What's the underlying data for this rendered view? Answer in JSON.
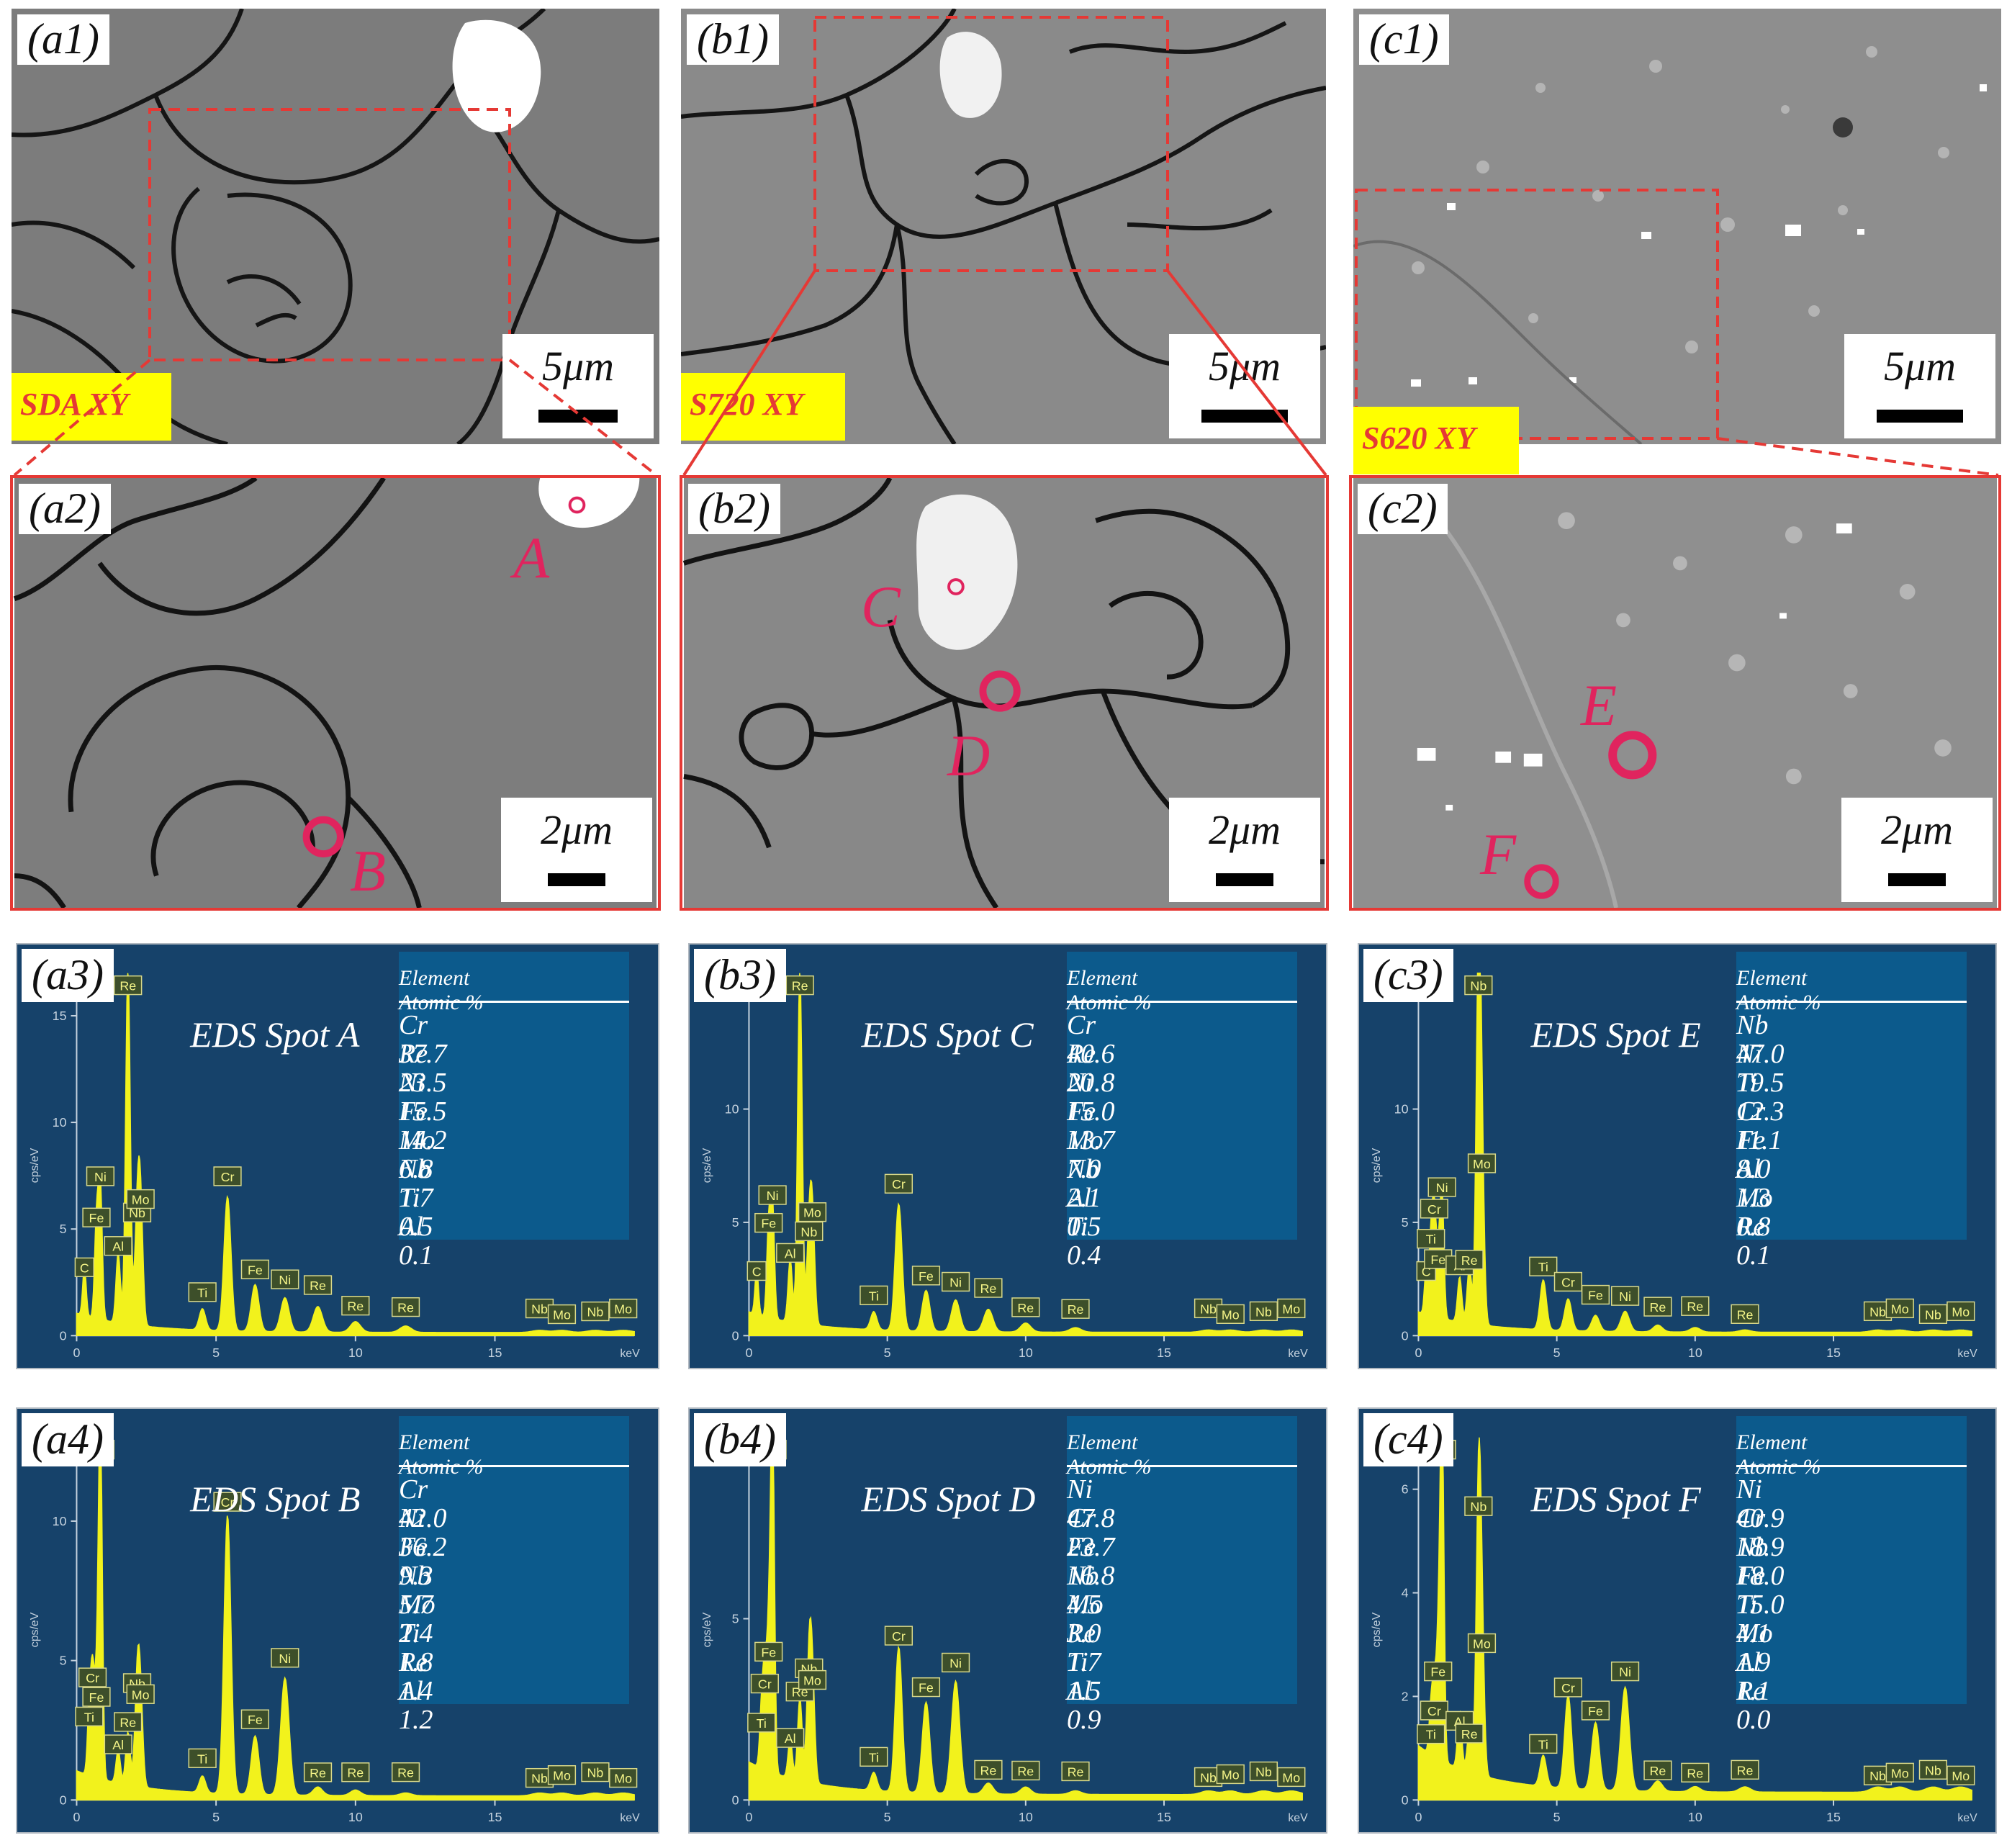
{
  "panels": {
    "a1": {
      "label": "(a1)",
      "scale": "5μm",
      "sample": "SDA XY"
    },
    "b1": {
      "label": "(b1)",
      "scale": "5μm",
      "sample": "S720 XY"
    },
    "c1": {
      "label": "(c1)",
      "scale": "5μm",
      "sample": "S620 XY"
    },
    "a2": {
      "label": "(a2)",
      "scale": "2μm",
      "spots": [
        "A",
        "B"
      ]
    },
    "b2": {
      "label": "(b2)",
      "scale": "2μm",
      "spots": [
        "C",
        "D"
      ]
    },
    "c2": {
      "label": "(c2)",
      "scale": "2μm",
      "spots": [
        "E",
        "F"
      ]
    }
  },
  "eds_common": {
    "table_headers": [
      "Element",
      "Atomic %"
    ],
    "y_axis_label": "cps/eV",
    "x_axis_label": "keV",
    "x_ticks": [
      "0",
      "5",
      "10",
      "15"
    ]
  },
  "eds": [
    {
      "label": "(a3)",
      "title": "EDS Spot A",
      "y_ticks": [
        "0",
        "5",
        "10",
        "15"
      ],
      "rows": [
        [
          "Cr",
          "37.7"
        ],
        [
          "Re",
          "23.5"
        ],
        [
          "Ni",
          "15.5"
        ],
        [
          "Fe",
          "14.2"
        ],
        [
          "Mo",
          "6.8"
        ],
        [
          "Nb",
          "1.7"
        ],
        [
          "Ti",
          "0.5"
        ],
        [
          "Al",
          "0.1"
        ]
      ]
    },
    {
      "label": "(b3)",
      "title": "EDS Spot C",
      "y_ticks": [
        "0",
        "5",
        "10"
      ],
      "rows": [
        [
          "Cr",
          "40.6"
        ],
        [
          "Re",
          "20.8"
        ],
        [
          "Ni",
          "15.0"
        ],
        [
          "Fe",
          "13.7"
        ],
        [
          "Mo",
          "7.0"
        ],
        [
          "Nb",
          "2.1"
        ],
        [
          "Al",
          "0.5"
        ],
        [
          "Ti",
          "0.4"
        ]
      ]
    },
    {
      "label": "(c3)",
      "title": "EDS Spot E",
      "y_ticks": [
        "0",
        "5",
        "10"
      ],
      "rows": [
        [
          "Nb",
          "47.0"
        ],
        [
          "Ni",
          "19.5"
        ],
        [
          "Ti",
          "12.3"
        ],
        [
          "Cr",
          "11.1"
        ],
        [
          "Fe",
          "8.0"
        ],
        [
          "Al",
          "1.3"
        ],
        [
          "Mo",
          "0.8"
        ],
        [
          "Re",
          "0.1"
        ]
      ]
    },
    {
      "label": "(a4)",
      "title": "EDS Spot B",
      "y_ticks": [
        "0",
        "5",
        "10"
      ],
      "rows": [
        [
          "Cr",
          "42.0"
        ],
        [
          "Ni",
          "36.2"
        ],
        [
          "Fe",
          "9.3"
        ],
        [
          "Nb",
          "5.7"
        ],
        [
          "Mo",
          "2.4"
        ],
        [
          "Ti",
          "1.8"
        ],
        [
          "Re",
          "1.4"
        ],
        [
          "Al",
          "1.2"
        ]
      ]
    },
    {
      "label": "(b4)",
      "title": "EDS Spot D",
      "y_ticks": [
        "0",
        "5"
      ],
      "rows": [
        [
          "Ni",
          "47.8"
        ],
        [
          "Cr",
          "23.7"
        ],
        [
          "Fe",
          "16.8"
        ],
        [
          "Nb",
          "4.5"
        ],
        [
          "Mo",
          "3.0"
        ],
        [
          "Re",
          "1.7"
        ],
        [
          "Ti",
          "1.5"
        ],
        [
          "Al",
          "0.9"
        ]
      ]
    },
    {
      "label": "(c4)",
      "title": "EDS Spot F",
      "y_ticks": [
        "0",
        "2",
        "4",
        "6"
      ],
      "rows": [
        [
          "Ni",
          "40.9"
        ],
        [
          "Cr",
          "18.9"
        ],
        [
          "Nb",
          "18.0"
        ],
        [
          "Fe",
          "15.0"
        ],
        [
          "Ti",
          "4.1"
        ],
        [
          "Mo",
          "1.9"
        ],
        [
          "Al",
          "1.1"
        ],
        [
          "Re",
          "0.0"
        ]
      ]
    }
  ],
  "chart_data": [
    {
      "type": "line",
      "title": "EDS Spot A",
      "xlabel": "keV",
      "ylabel": "cps/eV",
      "xlim": [
        0,
        20
      ],
      "ylim": [
        0,
        17
      ],
      "peaks": [
        {
          "label": "C",
          "x": 0.28,
          "y": 2.3
        },
        {
          "label": "Fe",
          "x": 0.71,
          "y": 4.5
        },
        {
          "label": "Ni",
          "x": 0.85,
          "y": 6.3
        },
        {
          "label": "Al",
          "x": 1.49,
          "y": 3.3
        },
        {
          "label": "Re",
          "x": 1.84,
          "y": 17.0
        },
        {
          "label": "Nb",
          "x": 2.17,
          "y": 4.6
        },
        {
          "label": "Mo",
          "x": 2.29,
          "y": 5.5
        },
        {
          "label": "Ti",
          "x": 4.51,
          "y": 1.0
        },
        {
          "label": "Cr",
          "x": 5.41,
          "y": 6.3
        },
        {
          "label": "Fe",
          "x": 6.4,
          "y": 2.2
        },
        {
          "label": "Ni",
          "x": 7.47,
          "y": 1.6
        },
        {
          "label": "Re",
          "x": 8.65,
          "y": 1.2
        },
        {
          "label": "Re",
          "x": 10.0,
          "y": 0.5
        },
        {
          "label": "Re",
          "x": 11.8,
          "y": 0.3
        },
        {
          "label": "Nb",
          "x": 16.6,
          "y": 0.1
        },
        {
          "label": "Mo",
          "x": 17.4,
          "y": 0.1
        },
        {
          "label": "Nb",
          "x": 18.6,
          "y": 0.1
        },
        {
          "label": "Mo",
          "x": 19.6,
          "y": 0.1
        }
      ]
    },
    {
      "type": "line",
      "title": "EDS Spot C",
      "xlabel": "keV",
      "ylabel": "cps/eV",
      "xlim": [
        0,
        20
      ],
      "ylim": [
        0,
        16
      ],
      "peaks": [
        {
          "label": "C",
          "x": 0.28,
          "y": 2.0
        },
        {
          "label": "Fe",
          "x": 0.71,
          "y": 4.0
        },
        {
          "label": "Ni",
          "x": 0.85,
          "y": 5.1
        },
        {
          "label": "Al",
          "x": 1.49,
          "y": 2.8
        },
        {
          "label": "Re",
          "x": 1.84,
          "y": 15.8
        },
        {
          "label": "Nb",
          "x": 2.17,
          "y": 3.5
        },
        {
          "label": "Mo",
          "x": 2.29,
          "y": 4.6
        },
        {
          "label": "Ti",
          "x": 4.51,
          "y": 0.8
        },
        {
          "label": "Cr",
          "x": 5.41,
          "y": 5.6
        },
        {
          "label": "Fe",
          "x": 6.4,
          "y": 1.8
        },
        {
          "label": "Ni",
          "x": 7.47,
          "y": 1.4
        },
        {
          "label": "Re",
          "x": 8.65,
          "y": 1.0
        },
        {
          "label": "Re",
          "x": 10.0,
          "y": 0.4
        },
        {
          "label": "Re",
          "x": 11.8,
          "y": 0.2
        },
        {
          "label": "Nb",
          "x": 16.6,
          "y": 0.1
        },
        {
          "label": "Mo",
          "x": 17.4,
          "y": 0.1
        },
        {
          "label": "Nb",
          "x": 18.6,
          "y": 0.1
        },
        {
          "label": "Mo",
          "x": 19.6,
          "y": 0.1
        }
      ]
    },
    {
      "type": "line",
      "title": "EDS Spot E",
      "xlabel": "keV",
      "ylabel": "cps/eV",
      "xlim": [
        0,
        20
      ],
      "ylim": [
        0,
        16
      ],
      "peaks": [
        {
          "label": "C",
          "x": 0.28,
          "y": 2.0
        },
        {
          "label": "Ti",
          "x": 0.45,
          "y": 3.3
        },
        {
          "label": "Cr",
          "x": 0.57,
          "y": 4.5
        },
        {
          "label": "Ni",
          "x": 0.85,
          "y": 5.7
        },
        {
          "label": "Fe",
          "x": 0.71,
          "y": 2.4
        },
        {
          "label": "Al",
          "x": 1.49,
          "y": 2.0
        },
        {
          "label": "Re",
          "x": 1.84,
          "y": 2.5
        },
        {
          "label": "Nb",
          "x": 2.17,
          "y": 16.0
        },
        {
          "label": "Mo",
          "x": 2.29,
          "y": 6.5
        },
        {
          "label": "Ti",
          "x": 4.51,
          "y": 2.2
        },
        {
          "label": "Cr",
          "x": 5.41,
          "y": 1.4
        },
        {
          "label": "Fe",
          "x": 6.4,
          "y": 0.7
        },
        {
          "label": "Ni",
          "x": 7.47,
          "y": 0.9
        },
        {
          "label": "Re",
          "x": 8.65,
          "y": 0.3
        },
        {
          "label": "Re",
          "x": 10.0,
          "y": 0.2
        },
        {
          "label": "Re",
          "x": 11.8,
          "y": 0.1
        },
        {
          "label": "Nb",
          "x": 16.6,
          "y": 0.1
        },
        {
          "label": "Mo",
          "x": 17.4,
          "y": 0.1
        },
        {
          "label": "Nb",
          "x": 18.6,
          "y": 0.1
        },
        {
          "label": "Mo",
          "x": 19.6,
          "y": 0.1
        }
      ]
    },
    {
      "type": "line",
      "title": "EDS Spot B",
      "xlabel": "keV",
      "ylabel": "cps/eV",
      "xlim": [
        0,
        20
      ],
      "ylim": [
        0,
        13
      ],
      "peaks": [
        {
          "label": "Ti",
          "x": 0.45,
          "y": 2.3
        },
        {
          "label": "Cr",
          "x": 0.57,
          "y": 3.6
        },
        {
          "label": "Fe",
          "x": 0.71,
          "y": 2.8
        },
        {
          "label": "Ni",
          "x": 0.85,
          "y": 13.0
        },
        {
          "label": "Al",
          "x": 1.49,
          "y": 1.2
        },
        {
          "label": "Re",
          "x": 1.84,
          "y": 1.9
        },
        {
          "label": "Nb",
          "x": 2.17,
          "y": 3.5
        },
        {
          "label": "Mo",
          "x": 2.29,
          "y": 3.0
        },
        {
          "label": "Ti",
          "x": 4.51,
          "y": 0.6
        },
        {
          "label": "Cr",
          "x": 5.41,
          "y": 10.0
        },
        {
          "label": "Fe",
          "x": 6.4,
          "y": 2.1
        },
        {
          "label": "Ni",
          "x": 7.47,
          "y": 4.2
        },
        {
          "label": "Re",
          "x": 8.65,
          "y": 0.3
        },
        {
          "label": "Re",
          "x": 10.0,
          "y": 0.2
        },
        {
          "label": "Re",
          "x": 11.8,
          "y": 0.1
        },
        {
          "label": "Nb",
          "x": 16.6,
          "y": 0.1
        },
        {
          "label": "Mo",
          "x": 17.4,
          "y": 0.1
        },
        {
          "label": "Nb",
          "x": 18.6,
          "y": 0.1
        },
        {
          "label": "Mo",
          "x": 19.6,
          "y": 0.1
        }
      ]
    },
    {
      "type": "line",
      "title": "EDS Spot D",
      "xlabel": "keV",
      "ylabel": "cps/eV",
      "xlim": [
        0,
        20
      ],
      "ylim": [
        0,
        10
      ],
      "peaks": [
        {
          "label": "Ti",
          "x": 0.45,
          "y": 1.6
        },
        {
          "label": "Cr",
          "x": 0.57,
          "y": 2.6
        },
        {
          "label": "Fe",
          "x": 0.71,
          "y": 3.4
        },
        {
          "label": "Ni",
          "x": 0.85,
          "y": 10.0
        },
        {
          "label": "Al",
          "x": 1.49,
          "y": 1.1
        },
        {
          "label": "Re",
          "x": 1.84,
          "y": 2.3
        },
        {
          "label": "Nb",
          "x": 2.17,
          "y": 3.1
        },
        {
          "label": "Mo",
          "x": 2.29,
          "y": 2.7
        },
        {
          "label": "Ti",
          "x": 4.51,
          "y": 0.5
        },
        {
          "label": "Cr",
          "x": 5.41,
          "y": 4.0
        },
        {
          "label": "Fe",
          "x": 6.4,
          "y": 2.5
        },
        {
          "label": "Ni",
          "x": 7.47,
          "y": 3.1
        },
        {
          "label": "Re",
          "x": 8.65,
          "y": 0.3
        },
        {
          "label": "Re",
          "x": 10.0,
          "y": 0.2
        },
        {
          "label": "Re",
          "x": 11.8,
          "y": 0.1
        },
        {
          "label": "Nb",
          "x": 16.6,
          "y": 0.1
        },
        {
          "label": "Mo",
          "x": 17.4,
          "y": 0.1
        },
        {
          "label": "Nb",
          "x": 18.6,
          "y": 0.1
        },
        {
          "label": "Mo",
          "x": 19.6,
          "y": 0.1
        }
      ]
    },
    {
      "type": "line",
      "title": "EDS Spot F",
      "xlabel": "keV",
      "ylabel": "cps/eV",
      "xlim": [
        0,
        20
      ],
      "ylim": [
        0,
        7
      ],
      "peaks": [
        {
          "label": "Ti",
          "x": 0.45,
          "y": 0.9
        },
        {
          "label": "Cr",
          "x": 0.57,
          "y": 1.3
        },
        {
          "label": "Fe",
          "x": 0.71,
          "y": 2.0
        },
        {
          "label": "Ni",
          "x": 0.85,
          "y": 7.0
        },
        {
          "label": "Al",
          "x": 1.49,
          "y": 1.1
        },
        {
          "label": "Re",
          "x": 1.84,
          "y": 0.8
        },
        {
          "label": "Nb",
          "x": 2.17,
          "y": 5.3
        },
        {
          "label": "Mo",
          "x": 2.29,
          "y": 2.6
        },
        {
          "label": "Ti",
          "x": 4.51,
          "y": 0.6
        },
        {
          "label": "Cr",
          "x": 5.41,
          "y": 1.8
        },
        {
          "label": "Fe",
          "x": 6.4,
          "y": 1.3
        },
        {
          "label": "Ni",
          "x": 7.47,
          "y": 2.0
        },
        {
          "label": "Re",
          "x": 8.65,
          "y": 0.2
        },
        {
          "label": "Re",
          "x": 10.0,
          "y": 0.1
        },
        {
          "label": "Re",
          "x": 11.8,
          "y": 0.1
        },
        {
          "label": "Nb",
          "x": 16.6,
          "y": 0.1
        },
        {
          "label": "Mo",
          "x": 17.4,
          "y": 0.1
        },
        {
          "label": "Nb",
          "x": 18.6,
          "y": 0.1
        },
        {
          "label": "Mo",
          "x": 19.6,
          "y": 0.1
        }
      ]
    }
  ]
}
